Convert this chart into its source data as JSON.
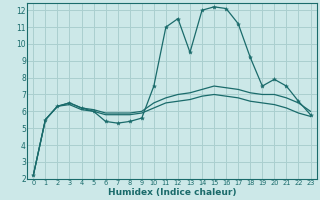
{
  "xlabel": "Humidex (Indice chaleur)",
  "bg_color": "#cce8e8",
  "grid_color": "#aacfcf",
  "line_color": "#1a6b6b",
  "xlim": [
    -0.5,
    23.5
  ],
  "ylim": [
    2,
    12.4
  ],
  "yticks": [
    2,
    3,
    4,
    5,
    6,
    7,
    8,
    9,
    10,
    11,
    12
  ],
  "xticks": [
    0,
    1,
    2,
    3,
    4,
    5,
    6,
    7,
    8,
    9,
    10,
    11,
    12,
    13,
    14,
    15,
    16,
    17,
    18,
    19,
    20,
    21,
    22,
    23
  ],
  "line1_x": [
    0,
    1,
    2,
    3,
    4,
    5,
    6,
    7,
    8,
    9,
    10,
    11,
    12,
    13,
    14,
    15,
    16,
    17,
    18,
    19,
    20,
    21,
    22,
    23
  ],
  "line1_y": [
    2.2,
    5.5,
    6.3,
    6.5,
    6.2,
    6.0,
    5.4,
    5.3,
    5.4,
    5.6,
    7.5,
    11.0,
    11.5,
    9.5,
    12.0,
    12.2,
    12.1,
    11.2,
    9.2,
    7.5,
    7.9,
    7.5,
    6.6,
    5.8
  ],
  "line2_x": [
    0,
    1,
    2,
    3,
    4,
    5,
    6,
    7,
    8,
    9,
    10,
    11,
    12,
    13,
    14,
    15,
    16,
    17,
    18,
    19,
    20,
    21,
    22,
    23
  ],
  "line2_y": [
    2.2,
    5.5,
    6.3,
    6.5,
    6.2,
    6.1,
    5.9,
    5.9,
    5.9,
    6.0,
    6.5,
    6.8,
    7.0,
    7.1,
    7.3,
    7.5,
    7.4,
    7.3,
    7.1,
    7.0,
    7.0,
    6.8,
    6.5,
    6.0
  ],
  "line3_x": [
    0,
    1,
    2,
    3,
    4,
    5,
    6,
    7,
    8,
    9,
    10,
    11,
    12,
    13,
    14,
    15,
    16,
    17,
    18,
    19,
    20,
    21,
    22,
    23
  ],
  "line3_y": [
    2.2,
    5.5,
    6.3,
    6.4,
    6.1,
    6.0,
    5.8,
    5.8,
    5.8,
    5.9,
    6.2,
    6.5,
    6.6,
    6.7,
    6.9,
    7.0,
    6.9,
    6.8,
    6.6,
    6.5,
    6.4,
    6.2,
    5.9,
    5.7
  ]
}
